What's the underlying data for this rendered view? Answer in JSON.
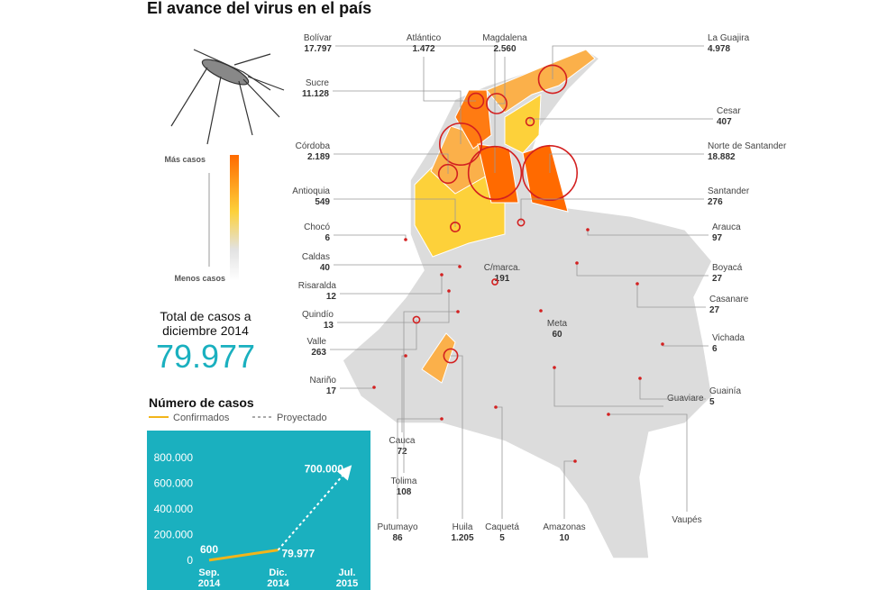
{
  "title": "El avance del virus en el país",
  "scale": {
    "high": "Más casos",
    "low": "Menos casos"
  },
  "total": {
    "label": "Total de casos a diciembre 2014",
    "value": "79.977"
  },
  "departments": [
    {
      "name": "Bolívar",
      "value": 17797,
      "label": "17.797"
    },
    {
      "name": "Atlántico",
      "value": 1472,
      "label": "1.472"
    },
    {
      "name": "Magdalena",
      "value": 2560,
      "label": "2.560"
    },
    {
      "name": "La Guajira",
      "value": 4978,
      "label": "4.978"
    },
    {
      "name": "Sucre",
      "value": 11128,
      "label": "11.128"
    },
    {
      "name": "Cesar",
      "value": 407,
      "label": "407"
    },
    {
      "name": "Córdoba",
      "value": 2189,
      "label": "2.189"
    },
    {
      "name": "Norte de Santander",
      "value": 18882,
      "label": "18.882"
    },
    {
      "name": "Antioquia",
      "value": 549,
      "label": "549"
    },
    {
      "name": "Santander",
      "value": 276,
      "label": "276"
    },
    {
      "name": "Chocó",
      "value": 6,
      "label": "6"
    },
    {
      "name": "Arauca",
      "value": 97,
      "label": "97"
    },
    {
      "name": "Caldas",
      "value": 40,
      "label": "40"
    },
    {
      "name": "Boyacá",
      "value": 27,
      "label": "27"
    },
    {
      "name": "Risaralda",
      "value": 12,
      "label": "12"
    },
    {
      "name": "C/marca.",
      "value": 191,
      "label": "191"
    },
    {
      "name": "Casanare",
      "value": 27,
      "label": "27"
    },
    {
      "name": "Quindío",
      "value": 13,
      "label": "13"
    },
    {
      "name": "Valle",
      "value": 263,
      "label": "263"
    },
    {
      "name": "Meta",
      "value": 60,
      "label": "60"
    },
    {
      "name": "Vichada",
      "value": 6,
      "label": "6"
    },
    {
      "name": "Nariño",
      "value": 17,
      "label": "17"
    },
    {
      "name": "Guaviare"
    },
    {
      "name": "Guainía",
      "value": 5,
      "label": "5"
    },
    {
      "name": "Cauca",
      "value": 72,
      "label": "72"
    },
    {
      "name": "Tolima",
      "value": 108,
      "label": "108"
    },
    {
      "name": "Putumayo",
      "value": 86,
      "label": "86"
    },
    {
      "name": "Huila",
      "value": 1205,
      "label": "1.205"
    },
    {
      "name": "Caquetá",
      "value": 5,
      "label": "5"
    },
    {
      "name": "Amazonas",
      "value": 10,
      "label": "10"
    },
    {
      "name": "Vaupés"
    }
  ],
  "chart_data": {
    "type": "line",
    "title": "Número de casos",
    "categories": [
      "Sep. 2014",
      "Dic. 2014",
      "Jul. 2015"
    ],
    "series": [
      {
        "name": "Confirmados",
        "color": "#f2b51a",
        "values": [
          600,
          79977,
          null
        ],
        "value_labels": [
          "600",
          "79.977",
          null
        ]
      },
      {
        "name": "Proyectado",
        "color": "#ffffff",
        "dashed": true,
        "values": [
          null,
          79977,
          700000
        ],
        "value_labels": [
          null,
          null,
          "700.000"
        ]
      }
    ],
    "ylim": [
      0,
      850000
    ],
    "yticks": [
      0,
      {
        "value": 200000,
        "label": "200.000"
      },
      {
        "value": 400000,
        "label": "400.000"
      },
      {
        "value": 600000,
        "label": "600.000"
      },
      {
        "value": 800000,
        "label": "800.000"
      }
    ],
    "grid": false
  }
}
